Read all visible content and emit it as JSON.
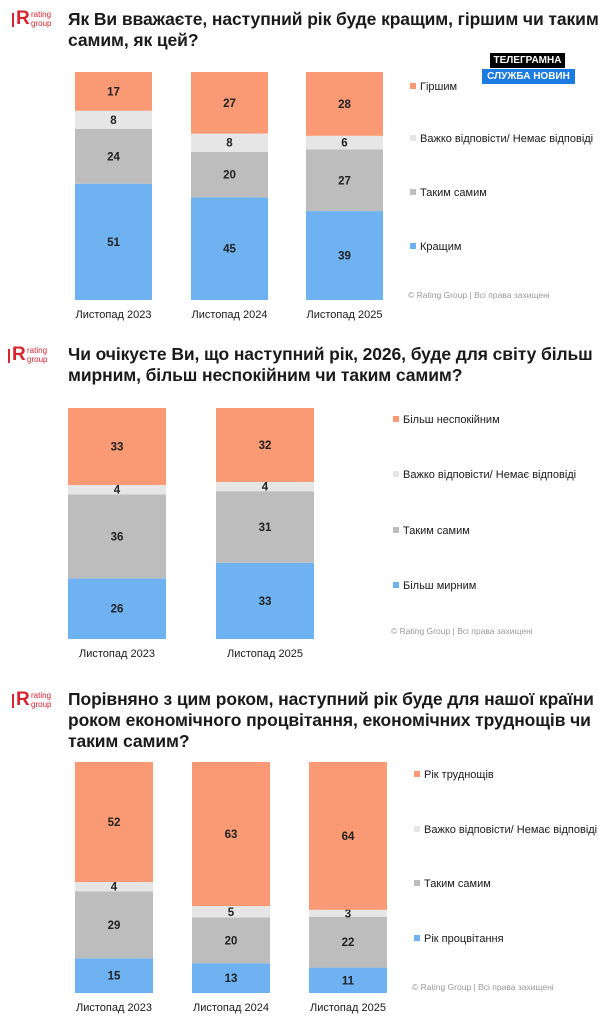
{
  "brand": {
    "logo_letter": "R",
    "logo_line1": "rating",
    "logo_line2": "group"
  },
  "badge": {
    "line1": "ТЕЛЕГРАМНА",
    "line2": "СЛУЖБА НОВИН"
  },
  "colors": {
    "orange": "#f99a74",
    "lightgray": "#e6e6e6",
    "gray": "#bdbdbd",
    "blue": "#6fb2f1",
    "accent": "#d9232e",
    "badge_blue": "#1c7be0"
  },
  "copyright": "© Rating Group | Всі права захищені",
  "chart_data": [
    {
      "type": "bar",
      "stacked": true,
      "title_line1": "Як Ви вважаєте, наступний рік буде кращим, гіршим чи таким",
      "title_line2": "самим, як цей?",
      "categories": [
        "Листопад 2023",
        "Листопад 2024",
        "Листопад 2025"
      ],
      "series": [
        {
          "name": "Кращим",
          "color": "#6fb2f1",
          "values": [
            51,
            45,
            39
          ]
        },
        {
          "name": "Таким самим",
          "color": "#bdbdbd",
          "values": [
            24,
            20,
            27
          ]
        },
        {
          "name": "Важко відповісти/ Немає відповіді",
          "color": "#e6e6e6",
          "values": [
            8,
            8,
            6
          ]
        },
        {
          "name": "Гіршим",
          "color": "#f99a74",
          "values": [
            17,
            27,
            28
          ]
        }
      ],
      "legend": [
        "Гіршим",
        "Важко відповісти/ Немає відповіді",
        "Таким самим",
        "Кращим"
      ],
      "ylim": [
        0,
        100
      ]
    },
    {
      "type": "bar",
      "stacked": true,
      "title_line1": "Чи очікуєте Ви, що наступний рік, 2026, буде для світу більш",
      "title_line2": "мирним, більш неспокійним чи таким самим?",
      "categories": [
        "Листопад 2023",
        "Листопад 2025"
      ],
      "series": [
        {
          "name": "Більш мирним",
          "color": "#6fb2f1",
          "values": [
            26,
            33
          ]
        },
        {
          "name": "Таким самим",
          "color": "#bdbdbd",
          "values": [
            36,
            31
          ]
        },
        {
          "name": "Важко відповісти/ Немає відповіді",
          "color": "#e6e6e6",
          "values": [
            4,
            4
          ]
        },
        {
          "name": "Більш неспокійним",
          "color": "#f99a74",
          "values": [
            33,
            32
          ]
        }
      ],
      "legend": [
        "Більш неспокійним",
        "Важко відповісти/ Немає відповіді",
        "Таким самим",
        "Більш мирним"
      ],
      "ylim": [
        0,
        100
      ]
    },
    {
      "type": "bar",
      "stacked": true,
      "title_line1": "Порівняно з цим роком, наступний рік буде для нашої країни",
      "title_line2": "роком економічного процвітання, економічних труднощів чи",
      "title_line3": "таким самим?",
      "categories": [
        "Листопад 2023",
        "Листопад 2024",
        "Листопад 2025"
      ],
      "series": [
        {
          "name": "Рік процвітання",
          "color": "#6fb2f1",
          "values": [
            15,
            13,
            11
          ]
        },
        {
          "name": "Таким самим",
          "color": "#bdbdbd",
          "values": [
            29,
            20,
            22
          ]
        },
        {
          "name": "Важко відповісти/ Немає відповіді",
          "color": "#e6e6e6",
          "values": [
            4,
            5,
            3
          ]
        },
        {
          "name": "Рік труднощів",
          "color": "#f99a74",
          "values": [
            52,
            63,
            64
          ]
        }
      ],
      "legend": [
        "Рік труднощів",
        "Важко відповісти/ Немає відповіді",
        "Таким самим",
        "Рік процвітання"
      ],
      "ylim": [
        0,
        100
      ]
    }
  ]
}
